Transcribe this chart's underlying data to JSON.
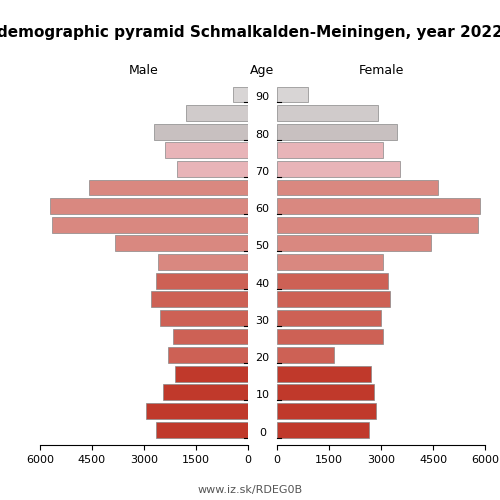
{
  "title": "demographic pyramid Schmalkalden-Meiningen, year 2022",
  "male_label": "Male",
  "female_label": "Female",
  "age_label": "Age",
  "footer": "www.iz.sk/RDEG0B",
  "age_groups": [
    0,
    5,
    10,
    15,
    20,
    25,
    30,
    35,
    40,
    45,
    50,
    55,
    60,
    65,
    70,
    75,
    80,
    85,
    90
  ],
  "age_widths": [
    5,
    5,
    5,
    5,
    5,
    5,
    5,
    5,
    5,
    5,
    5,
    5,
    5,
    5,
    5,
    5,
    5,
    5,
    5
  ],
  "age_ticks": [
    0,
    10,
    20,
    30,
    40,
    50,
    60,
    70,
    80,
    90
  ],
  "male": [
    2650,
    2950,
    2450,
    2100,
    2300,
    2150,
    2550,
    2800,
    2650,
    2600,
    3850,
    5650,
    5700,
    4600,
    2050,
    2400,
    2700,
    1800,
    420
  ],
  "female": [
    2650,
    2850,
    2800,
    2700,
    1650,
    3050,
    3000,
    3250,
    3200,
    3050,
    4450,
    5800,
    5850,
    4650,
    3550,
    3050,
    3450,
    2900,
    900
  ],
  "colors_male": [
    "#c0392b",
    "#c0392b",
    "#c0392b",
    "#c0392b",
    "#cd6155",
    "#cd6155",
    "#cd6155",
    "#cd6155",
    "#cd6155",
    "#d98880",
    "#d98880",
    "#d98880",
    "#d98880",
    "#d98880",
    "#e8b4b8",
    "#e8b4b8",
    "#c8c0c0",
    "#d0cbcb",
    "#d8d5d5"
  ],
  "colors_female": [
    "#c0392b",
    "#c0392b",
    "#c0392b",
    "#c0392b",
    "#cd6155",
    "#cd6155",
    "#cd6155",
    "#cd6155",
    "#cd6155",
    "#d98880",
    "#d98880",
    "#d98880",
    "#d98880",
    "#d98880",
    "#e8b4b8",
    "#e8b4b8",
    "#c8c0c0",
    "#d0cbcb",
    "#d8d5d5"
  ],
  "xlim": 6000,
  "xticks": [
    0,
    1500,
    3000,
    4500,
    6000
  ],
  "background_color": "#ffffff",
  "edgecolor": "#888888",
  "edgewidth": 0.5,
  "title_fontsize": 11,
  "label_fontsize": 9,
  "tick_fontsize": 8,
  "footer_fontsize": 8
}
